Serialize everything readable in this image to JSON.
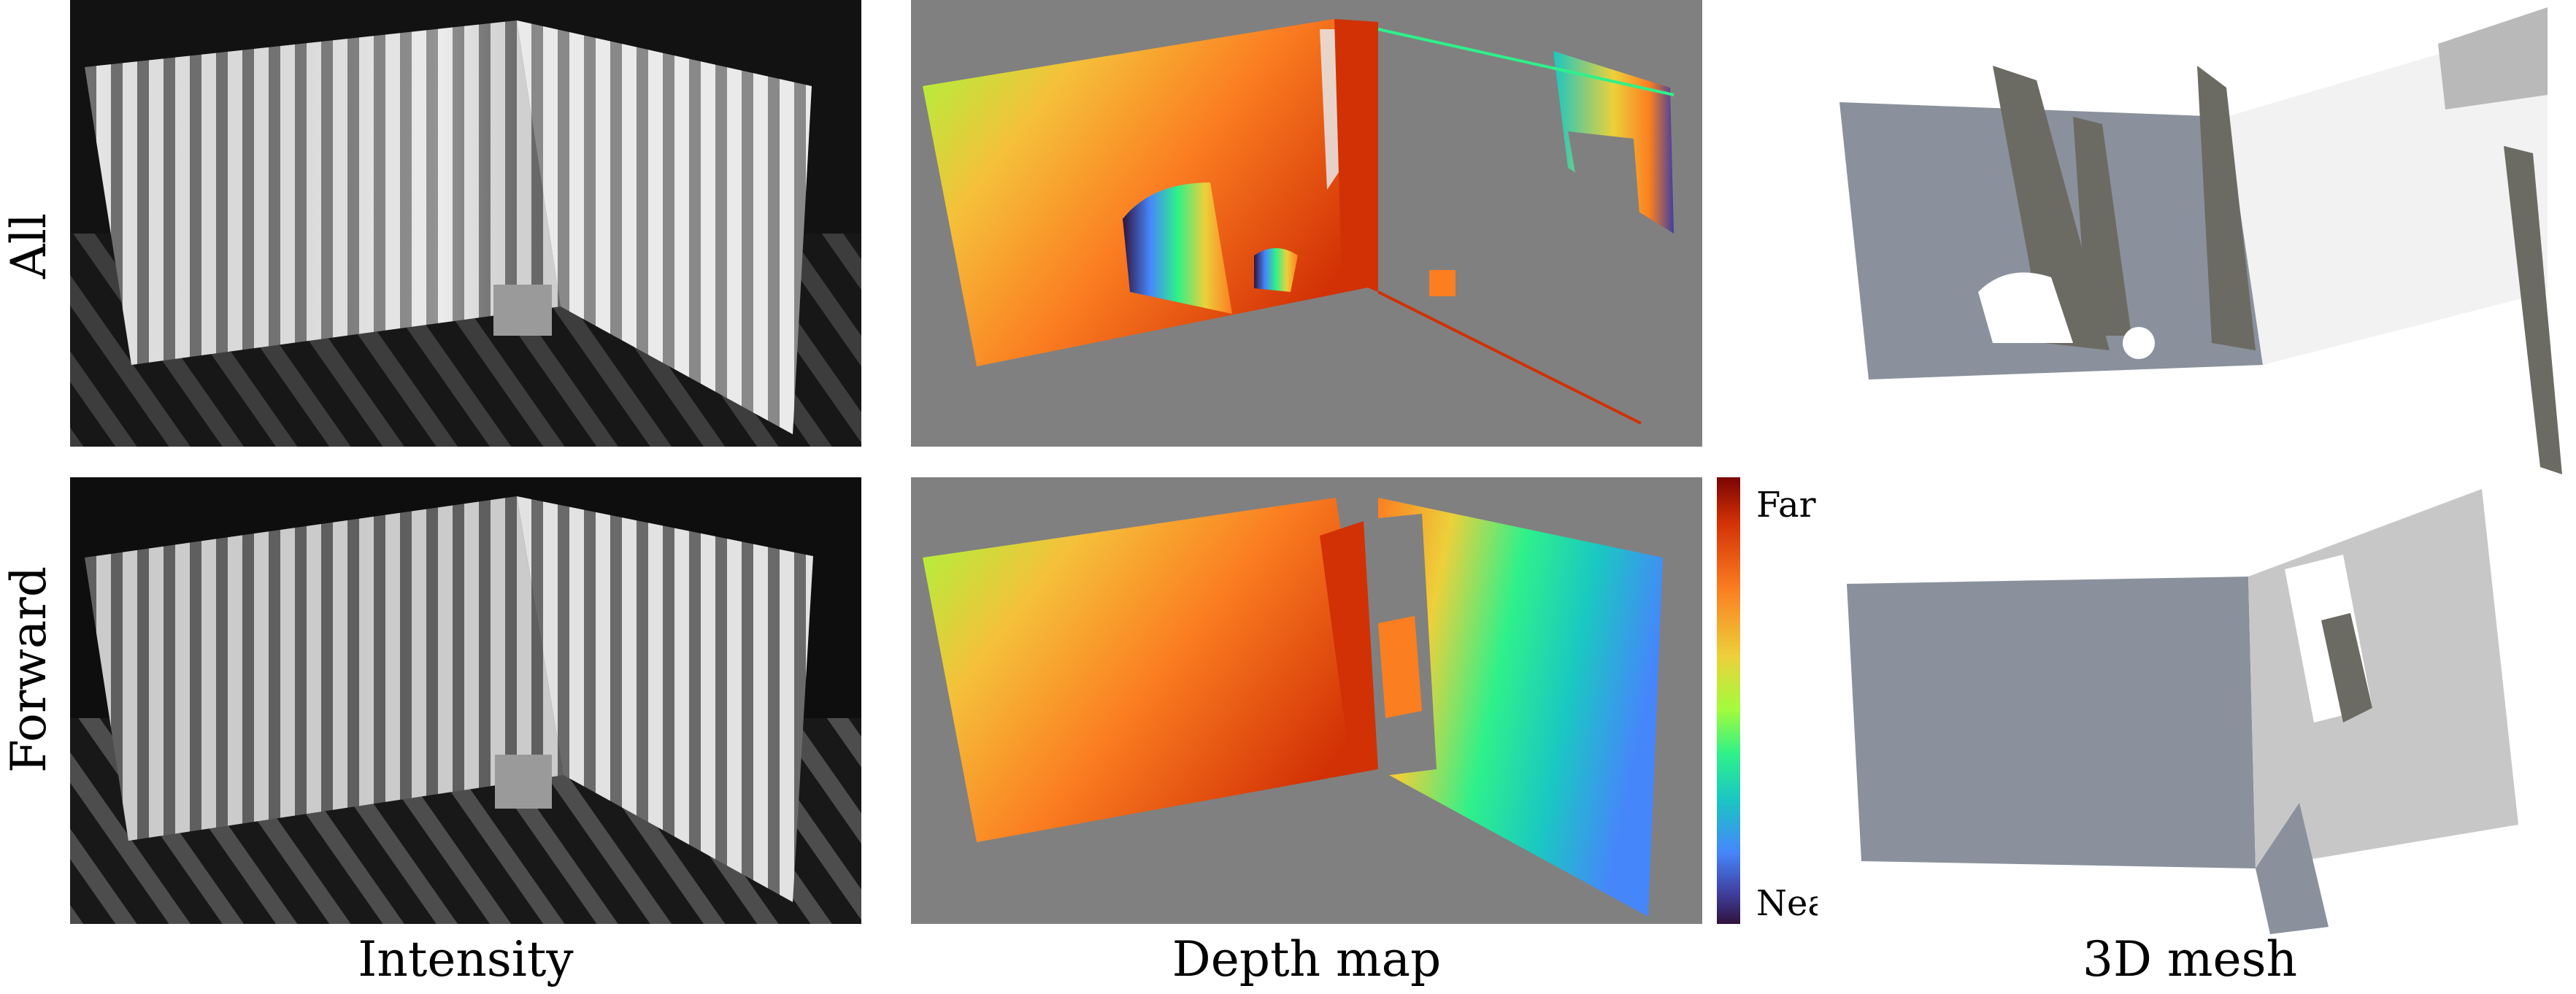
{
  "row_labels": {
    "top": "All",
    "bottom": "Forward"
  },
  "column_labels": {
    "intensity": "Intensity",
    "depth": "Depth map",
    "mesh": "3D mesh"
  },
  "colorbar": {
    "far_label": "Far",
    "near_label": "Near",
    "colormap": "turbo",
    "colors": [
      "#7a0403",
      "#d23105",
      "#fb7e21",
      "#edd03a",
      "#a2fc3c",
      "#2ef18a",
      "#1ac7c2",
      "#4686fb",
      "#4040a0",
      "#30123b"
    ]
  },
  "colors": {
    "depth_background": "#808080",
    "intensity_dark": "#1a1a1a",
    "stripe_light": "#e8e8e8",
    "stripe_dark": "#6e6e6e",
    "mesh_gray": "#8a919c",
    "mesh_shadow": "#6b6b63"
  }
}
